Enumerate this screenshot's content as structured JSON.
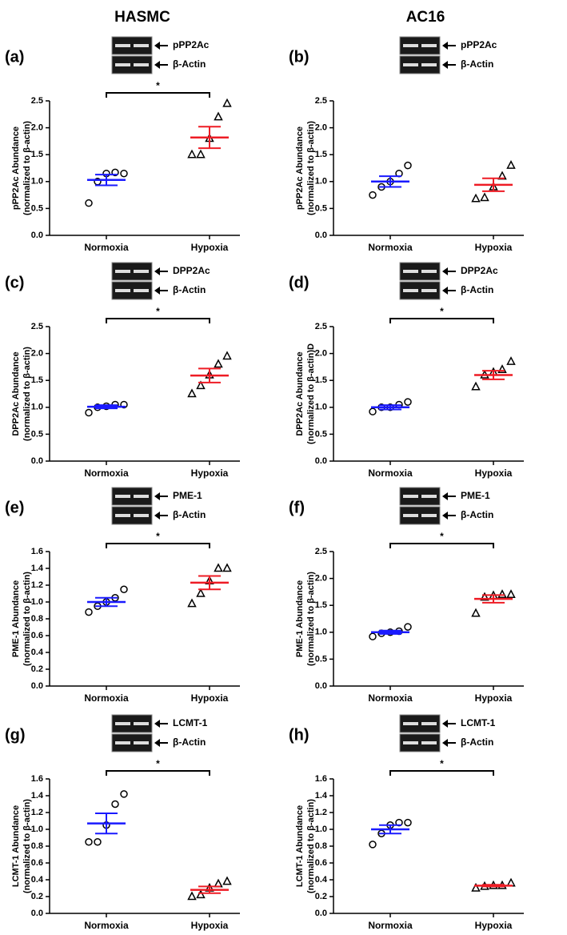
{
  "columns": [
    "HASMC",
    "AC16"
  ],
  "chart_data": [
    {
      "type": "dotplot",
      "panel": "(a)",
      "blot_labels": [
        "pPP2Ac",
        "β-Actin"
      ],
      "ylabel": "pPP2Ac Abundance",
      "ylabel2": "(normalized to β-actin)",
      "significance": "*",
      "categories": [
        "Normoxia",
        "Hypoxia"
      ],
      "markers": [
        "circle",
        "triangle"
      ],
      "ylim": [
        0,
        2.5
      ],
      "yticks": [
        {
          "value": 0,
          "label": "0.0"
        },
        0.5,
        {
          "value": 1,
          "label": "1.0"
        },
        1.5,
        {
          "value": 2,
          "label": "2.0"
        },
        2.5
      ],
      "groups": [
        {
          "color": "#1a1aff",
          "values": [
            0.6,
            1.0,
            1.15,
            1.17,
            1.15
          ],
          "mean": 1.03,
          "sem": 0.1
        },
        {
          "color": "#ee1c25",
          "values": [
            1.5,
            1.5,
            1.8,
            2.2,
            2.45
          ],
          "mean": 1.82,
          "sem": 0.2
        }
      ]
    },
    {
      "type": "dotplot",
      "panel": "(b)",
      "blot_labels": [
        "pPP2Ac",
        "β-Actin"
      ],
      "ylabel": "pPP2Ac Abundance",
      "ylabel2": "(normalized to β-actin)",
      "categories": [
        "Normoxia",
        "Hypoxia"
      ],
      "markers": [
        "circle",
        "triangle"
      ],
      "ylim": [
        0,
        2.5
      ],
      "yticks": [
        {
          "value": 0,
          "label": "0.0"
        },
        0.5,
        {
          "value": 1,
          "label": "1.0"
        },
        1.5,
        {
          "value": 2,
          "label": "2.0"
        },
        2.5
      ],
      "groups": [
        {
          "color": "#1a1aff",
          "values": [
            0.75,
            0.9,
            1.0,
            1.15,
            1.3
          ],
          "mean": 1.0,
          "sem": 0.1
        },
        {
          "color": "#ee1c25",
          "values": [
            0.68,
            0.7,
            0.9,
            1.1,
            1.3
          ],
          "mean": 0.94,
          "sem": 0.12
        }
      ]
    },
    {
      "type": "dotplot",
      "panel": "(c)",
      "blot_labels": [
        "DPP2Ac",
        "β-Actin"
      ],
      "ylabel": "DPP2Ac Abundance",
      "ylabel2": "(normalized to β-actin)",
      "significance": "*",
      "categories": [
        "Normoxia",
        "Hypoxia"
      ],
      "markers": [
        "circle",
        "triangle"
      ],
      "ylim": [
        0,
        2.5
      ],
      "yticks": [
        {
          "value": 0,
          "label": "0.0"
        },
        0.5,
        {
          "value": 1,
          "label": "1.0"
        },
        1.5,
        {
          "value": 2,
          "label": "2.0"
        },
        2.5
      ],
      "groups": [
        {
          "color": "#1a1aff",
          "values": [
            0.9,
            1.0,
            1.02,
            1.05,
            1.05
          ],
          "mean": 1.01,
          "sem": 0.03
        },
        {
          "color": "#ee1c25",
          "values": [
            1.25,
            1.4,
            1.6,
            1.8,
            1.95
          ],
          "mean": 1.59,
          "sem": 0.13
        }
      ]
    },
    {
      "type": "dotplot",
      "panel": "(d)",
      "blot_labels": [
        "DPP2Ac",
        "β-Actin"
      ],
      "ylabel": "DPP2Ac Abundance",
      "ylabel2": "(normalized to β-actin)D",
      "significance": "*",
      "categories": [
        "Normoxia",
        "Hypoxia"
      ],
      "markers": [
        "circle",
        "triangle"
      ],
      "ylim": [
        0,
        2.5
      ],
      "yticks": [
        {
          "value": 0,
          "label": "0.0"
        },
        0.5,
        {
          "value": 1,
          "label": "1.0"
        },
        1.5,
        {
          "value": 2,
          "label": "2.0"
        },
        2.5
      ],
      "groups": [
        {
          "color": "#1a1aff",
          "values": [
            0.92,
            1.0,
            1.0,
            1.05,
            1.1
          ],
          "mean": 1.0,
          "sem": 0.04
        },
        {
          "color": "#ee1c25",
          "values": [
            1.38,
            1.6,
            1.65,
            1.7,
            1.85
          ],
          "mean": 1.6,
          "sem": 0.08
        }
      ]
    },
    {
      "type": "dotplot",
      "panel": "(e)",
      "blot_labels": [
        "PME-1",
        "β-Actin"
      ],
      "ylabel": "PME-1 Abundance",
      "ylabel2": "(normalized to β-actin)",
      "significance": "*",
      "categories": [
        "Normoxia",
        "Hypoxia"
      ],
      "markers": [
        "circle",
        "triangle"
      ],
      "ylim": [
        0,
        1.6
      ],
      "yticks": [
        {
          "value": 0,
          "label": "0.0"
        },
        0.2,
        0.4,
        0.6,
        0.8,
        {
          "value": 1,
          "label": "1.0"
        },
        1.2,
        1.4,
        1.6
      ],
      "groups": [
        {
          "color": "#1a1aff",
          "values": [
            0.88,
            0.95,
            1.0,
            1.05,
            1.15
          ],
          "mean": 1.0,
          "sem": 0.05
        },
        {
          "color": "#ee1c25",
          "values": [
            0.98,
            1.1,
            1.25,
            1.4,
            1.4
          ],
          "mean": 1.23,
          "sem": 0.08
        }
      ]
    },
    {
      "type": "dotplot",
      "panel": "(f)",
      "blot_labels": [
        "PME-1",
        "β-Actin"
      ],
      "ylabel": "PME-1 Abundance",
      "ylabel2": "(normalized to β-actin)",
      "significance": "*",
      "categories": [
        "Normoxia",
        "Hypoxia"
      ],
      "markers": [
        "circle",
        "triangle"
      ],
      "ylim": [
        0,
        2.5
      ],
      "yticks": [
        {
          "value": 0,
          "label": "0.0"
        },
        0.5,
        {
          "value": 1,
          "label": "1.0"
        },
        1.5,
        {
          "value": 2,
          "label": "2.0"
        },
        2.5
      ],
      "groups": [
        {
          "color": "#1a1aff",
          "values": [
            0.92,
            0.98,
            1.0,
            1.02,
            1.1
          ],
          "mean": 1.0,
          "sem": 0.03
        },
        {
          "color": "#ee1c25",
          "values": [
            1.35,
            1.65,
            1.68,
            1.7,
            1.7
          ],
          "mean": 1.62,
          "sem": 0.07
        }
      ]
    },
    {
      "type": "dotplot",
      "panel": "(g)",
      "blot_labels": [
        "LCMT-1",
        "β-Actin"
      ],
      "ylabel": "LCMT-1 Abundance",
      "ylabel2": "(normalized to β-actin)",
      "significance": "*",
      "categories": [
        "Normoxia",
        "Hypoxia"
      ],
      "markers": [
        "circle",
        "triangle"
      ],
      "ylim": [
        0,
        1.6
      ],
      "yticks": [
        {
          "value": 0,
          "label": "0.0"
        },
        0.2,
        0.4,
        0.6,
        0.8,
        {
          "value": 1,
          "label": "1.0"
        },
        1.2,
        1.4,
        1.6
      ],
      "groups": [
        {
          "color": "#1a1aff",
          "values": [
            0.85,
            0.85,
            1.05,
            1.3,
            1.42
          ],
          "mean": 1.07,
          "sem": 0.12
        },
        {
          "color": "#ee1c25",
          "values": [
            0.2,
            0.22,
            0.3,
            0.35,
            0.38
          ],
          "mean": 0.28,
          "sem": 0.04
        }
      ]
    },
    {
      "type": "dotplot",
      "panel": "(h)",
      "blot_labels": [
        "LCMT-1",
        "β-Actin"
      ],
      "ylabel": "LCMT-1 Abundance",
      "ylabel2": "(normalized to β-actin)",
      "significance": "*",
      "categories": [
        "Normoxia",
        "Hypoxia"
      ],
      "markers": [
        "circle",
        "triangle"
      ],
      "ylim": [
        0,
        1.6
      ],
      "yticks": [
        {
          "value": 0,
          "label": "0.0"
        },
        0.2,
        0.4,
        0.6,
        0.8,
        {
          "value": 1,
          "label": "1.0"
        },
        1.2,
        1.4,
        1.6
      ],
      "groups": [
        {
          "color": "#1a1aff",
          "values": [
            0.82,
            0.95,
            1.05,
            1.08,
            1.08
          ],
          "mean": 1.0,
          "sem": 0.05
        },
        {
          "color": "#ee1c25",
          "values": [
            0.3,
            0.32,
            0.33,
            0.33,
            0.36
          ],
          "mean": 0.33,
          "sem": 0.01
        }
      ]
    }
  ]
}
